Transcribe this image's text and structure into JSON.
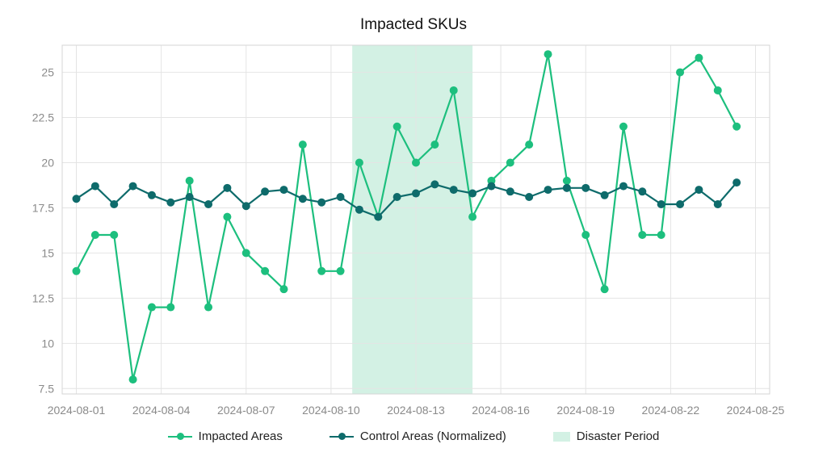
{
  "chart_data": {
    "type": "line",
    "title": "Impacted SKUs",
    "x": [
      "2024-08-01",
      "2024-08-02",
      "2024-08-03",
      "2024-08-04",
      "2024-08-05",
      "2024-08-06",
      "2024-08-07",
      "2024-08-08",
      "2024-08-09",
      "2024-08-10",
      "2024-08-11",
      "2024-08-12",
      "2024-08-13",
      "2024-08-14",
      "2024-08-15",
      "2024-08-16",
      "2024-08-17",
      "2024-08-18",
      "2024-08-19",
      "2024-08-20",
      "2024-08-21",
      "2024-08-22",
      "2024-08-23",
      "2024-08-24",
      "2024-08-25"
    ],
    "x_axis": {
      "start": "2024-07-31T12:00",
      "end": "2024-08-25T12:00",
      "ticks": [
        "2024-08-01",
        "2024-08-04",
        "2024-08-07",
        "2024-08-10",
        "2024-08-13",
        "2024-08-16",
        "2024-08-19",
        "2024-08-22",
        "2024-08-25"
      ]
    },
    "y_axis": {
      "range": [
        7.2,
        26.5
      ],
      "ticks": [
        7.5,
        10,
        12.5,
        15,
        17.5,
        20,
        22.5,
        25
      ],
      "tick_labels": [
        "7.5",
        "10",
        "12.5",
        "15",
        "17.5",
        "20",
        "22.5",
        "25"
      ]
    },
    "series": [
      {
        "name": "Impacted Areas",
        "color": "#1dbf7e",
        "points": [
          [
            "2024-08-01T00:00",
            14
          ],
          [
            "2024-08-01T16:00",
            16
          ],
          [
            "2024-08-02T08:00",
            16
          ],
          [
            "2024-08-03T00:00",
            8
          ],
          [
            "2024-08-03T16:00",
            12
          ],
          [
            "2024-08-04T08:00",
            12
          ],
          [
            "2024-08-05T00:00",
            19
          ],
          [
            "2024-08-05T16:00",
            12
          ],
          [
            "2024-08-06T08:00",
            17
          ],
          [
            "2024-08-07T00:00",
            15
          ],
          [
            "2024-08-07T16:00",
            14
          ],
          [
            "2024-08-08T08:00",
            13
          ],
          [
            "2024-08-09T00:00",
            21
          ],
          [
            "2024-08-09T16:00",
            14
          ],
          [
            "2024-08-10T08:00",
            14
          ],
          [
            "2024-08-11T00:00",
            20
          ],
          [
            "2024-08-11T16:00",
            17
          ],
          [
            "2024-08-12T08:00",
            22
          ],
          [
            "2024-08-13T00:00",
            20
          ],
          [
            "2024-08-13T16:00",
            21
          ],
          [
            "2024-08-14T08:00",
            24
          ],
          [
            "2024-08-15T00:00",
            17
          ],
          [
            "2024-08-15T16:00",
            19
          ],
          [
            "2024-08-16T08:00",
            20
          ],
          [
            "2024-08-17T00:00",
            21
          ],
          [
            "2024-08-17T16:00",
            26
          ],
          [
            "2024-08-18T08:00",
            19
          ],
          [
            "2024-08-19T00:00",
            16
          ],
          [
            "2024-08-19T16:00",
            13
          ],
          [
            "2024-08-20T08:00",
            22
          ],
          [
            "2024-08-21T00:00",
            16
          ],
          [
            "2024-08-21T16:00",
            16
          ],
          [
            "2024-08-22T08:00",
            25
          ],
          [
            "2024-08-23T00:00",
            25.8
          ],
          [
            "2024-08-23T16:00",
            24
          ],
          [
            "2024-08-24T08:00",
            22
          ]
        ]
      },
      {
        "name": "Control Areas (Normalized)",
        "color": "#0e6b6b",
        "points": [
          [
            "2024-08-01T00:00",
            18
          ],
          [
            "2024-08-01T16:00",
            18.7
          ],
          [
            "2024-08-02T08:00",
            17.7
          ],
          [
            "2024-08-03T00:00",
            18.7
          ],
          [
            "2024-08-03T16:00",
            18.2
          ],
          [
            "2024-08-04T08:00",
            17.8
          ],
          [
            "2024-08-05T00:00",
            18.1
          ],
          [
            "2024-08-05T16:00",
            17.7
          ],
          [
            "2024-08-06T08:00",
            18.6
          ],
          [
            "2024-08-07T00:00",
            17.6
          ],
          [
            "2024-08-07T16:00",
            18.4
          ],
          [
            "2024-08-08T08:00",
            18.5
          ],
          [
            "2024-08-09T00:00",
            18
          ],
          [
            "2024-08-09T16:00",
            17.8
          ],
          [
            "2024-08-10T08:00",
            18.1
          ],
          [
            "2024-08-11T00:00",
            17.4
          ],
          [
            "2024-08-11T16:00",
            17
          ],
          [
            "2024-08-12T08:00",
            18.1
          ],
          [
            "2024-08-13T00:00",
            18.3
          ],
          [
            "2024-08-13T16:00",
            18.8
          ],
          [
            "2024-08-14T08:00",
            18.5
          ],
          [
            "2024-08-15T00:00",
            18.3
          ],
          [
            "2024-08-15T16:00",
            18.7
          ],
          [
            "2024-08-16T08:00",
            18.4
          ],
          [
            "2024-08-17T00:00",
            18.1
          ],
          [
            "2024-08-17T16:00",
            18.5
          ],
          [
            "2024-08-18T08:00",
            18.6
          ],
          [
            "2024-08-19T00:00",
            18.6
          ],
          [
            "2024-08-19T16:00",
            18.2
          ],
          [
            "2024-08-20T08:00",
            18.7
          ],
          [
            "2024-08-21T00:00",
            18.4
          ],
          [
            "2024-08-21T16:00",
            17.7
          ],
          [
            "2024-08-22T08:00",
            17.7
          ],
          [
            "2024-08-23T00:00",
            18.5
          ],
          [
            "2024-08-23T16:00",
            17.7
          ],
          [
            "2024-08-24T08:00",
            18.9
          ]
        ]
      }
    ],
    "highlight": {
      "name": "Disaster Period",
      "start": "2024-08-10T18:00",
      "end": "2024-08-15T00:00",
      "color": "#d3f1e4"
    },
    "legend": {
      "position": "bottom",
      "items": [
        "Impacted Areas",
        "Control Areas (Normalized)",
        "Disaster Period"
      ]
    },
    "grid": true
  }
}
